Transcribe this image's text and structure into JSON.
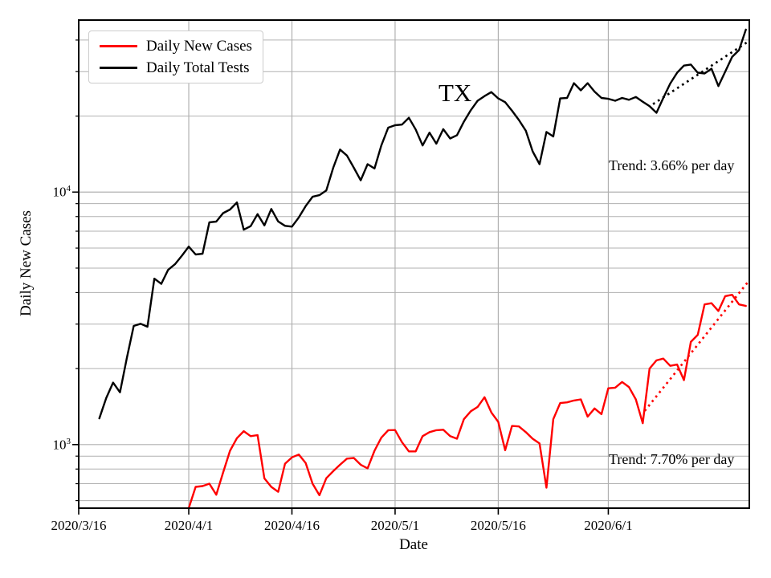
{
  "figure": {
    "region_label": "TX",
    "xlabel": "Date",
    "ylabel": "Daily New Cases",
    "legend": [
      {
        "label": "Daily New Cases",
        "color": "#ff0000"
      },
      {
        "label": "Daily Total Tests",
        "color": "#000000"
      }
    ],
    "annotations": {
      "tests_trend": "Trend: 3.66% per day",
      "cases_trend": "Trend: 7.70% per day"
    }
  },
  "chart_data": {
    "type": "line",
    "title": "TX",
    "xlabel": "Date",
    "ylabel": "Daily New Cases",
    "y_scale": "log",
    "grid": true,
    "legend_position": "upper-left",
    "ylim": [
      560,
      48000
    ],
    "xlim_days": [
      0,
      97.5
    ],
    "x_tick_labels": [
      "2020/3/16",
      "2020/4/1",
      "2020/4/16",
      "2020/5/1",
      "2020/5/16",
      "2020/6/1"
    ],
    "x_tick_day_offsets": [
      0,
      16,
      31,
      46,
      61,
      77
    ],
    "y_major_ticks": [
      1000,
      10000
    ],
    "y_major_labels": [
      {
        "base": "10",
        "exp": "3"
      },
      {
        "base": "10",
        "exp": "4"
      }
    ],
    "y_minor_ticks": [
      600,
      700,
      800,
      900,
      2000,
      3000,
      4000,
      5000,
      6000,
      7000,
      8000,
      9000,
      20000,
      30000,
      40000
    ],
    "first_point_day_offset": 3,
    "dates": [
      "2020/3/19",
      "2020/3/20",
      "2020/3/21",
      "2020/3/22",
      "2020/3/23",
      "2020/3/24",
      "2020/3/25",
      "2020/3/26",
      "2020/3/27",
      "2020/3/28",
      "2020/3/29",
      "2020/3/30",
      "2020/3/31",
      "2020/4/1",
      "2020/4/2",
      "2020/4/3",
      "2020/4/4",
      "2020/4/5",
      "2020/4/6",
      "2020/4/7",
      "2020/4/8",
      "2020/4/9",
      "2020/4/10",
      "2020/4/11",
      "2020/4/12",
      "2020/4/13",
      "2020/4/14",
      "2020/4/15",
      "2020/4/16",
      "2020/4/17",
      "2020/4/18",
      "2020/4/19",
      "2020/4/20",
      "2020/4/21",
      "2020/4/22",
      "2020/4/23",
      "2020/4/24",
      "2020/4/25",
      "2020/4/26",
      "2020/4/27",
      "2020/4/28",
      "2020/4/29",
      "2020/4/30",
      "2020/5/1",
      "2020/5/2",
      "2020/5/3",
      "2020/5/4",
      "2020/5/5",
      "2020/5/6",
      "2020/5/7",
      "2020/5/8",
      "2020/5/9",
      "2020/5/10",
      "2020/5/11",
      "2020/5/12",
      "2020/5/13",
      "2020/5/14",
      "2020/5/15",
      "2020/5/16",
      "2020/5/17",
      "2020/5/18",
      "2020/5/19",
      "2020/5/20",
      "2020/5/21",
      "2020/5/22",
      "2020/5/23",
      "2020/5/24",
      "2020/5/25",
      "2020/5/26",
      "2020/5/27",
      "2020/5/28",
      "2020/5/29",
      "2020/5/30",
      "2020/5/31",
      "2020/6/1",
      "2020/6/2",
      "2020/6/3",
      "2020/6/4",
      "2020/6/5",
      "2020/6/6",
      "2020/6/7",
      "2020/6/8",
      "2020/6/9",
      "2020/6/10",
      "2020/6/11",
      "2020/6/12",
      "2020/6/13",
      "2020/6/14",
      "2020/6/15",
      "2020/6/16",
      "2020/6/17",
      "2020/6/18",
      "2020/6/19",
      "2020/6/20",
      "2020/6/21"
    ],
    "series": [
      {
        "name": "Daily New Cases",
        "color": "#ff0000",
        "values": [
          null,
          null,
          null,
          null,
          null,
          null,
          null,
          null,
          null,
          null,
          null,
          null,
          null,
          560,
          680,
          685,
          700,
          633,
          775,
          945,
          1060,
          1130,
          1080,
          1090,
          735,
          680,
          650,
          840,
          890,
          913,
          845,
          700,
          630,
          736,
          785,
          832,
          880,
          885,
          832,
          805,
          945,
          1065,
          1140,
          1142,
          1022,
          940,
          940,
          1080,
          1120,
          1140,
          1145,
          1080,
          1055,
          1260,
          1355,
          1410,
          1540,
          1340,
          1230,
          950,
          1185,
          1180,
          1120,
          1055,
          1010,
          675,
          1260,
          1460,
          1470,
          1495,
          1510,
          1290,
          1390,
          1320,
          1670,
          1680,
          1770,
          1690,
          1510,
          1215,
          2000,
          2155,
          2190,
          2050,
          2075,
          1800,
          2550,
          2720,
          3590,
          3630,
          3380,
          3870,
          3920,
          3590,
          3540
        ]
      },
      {
        "name": "Daily Total Tests",
        "color": "#000000",
        "values": [
          1270,
          1530,
          1760,
          1610,
          2200,
          2950,
          3010,
          2930,
          4540,
          4330,
          4920,
          5180,
          5600,
          6080,
          5660,
          5700,
          7590,
          7640,
          8250,
          8530,
          9100,
          7100,
          7330,
          8180,
          7380,
          8570,
          7650,
          7350,
          7300,
          7940,
          8800,
          9580,
          9720,
          10150,
          12480,
          14740,
          13950,
          12480,
          11130,
          12900,
          12400,
          15300,
          18000,
          18400,
          18500,
          19700,
          17700,
          15300,
          17200,
          15550,
          17750,
          16300,
          16800,
          19000,
          21100,
          23000,
          24000,
          24900,
          23500,
          22700,
          21000,
          19300,
          17500,
          14500,
          12900,
          17300,
          16600,
          23500,
          23600,
          27000,
          25300,
          27000,
          25000,
          23600,
          23400,
          23000,
          23600,
          23200,
          23800,
          22800,
          21900,
          20600,
          23600,
          26900,
          29700,
          31700,
          32000,
          29700,
          29500,
          30800,
          26300,
          30000,
          34300,
          36500,
          44000
        ]
      }
    ],
    "trend_lines": [
      {
        "series": "Daily Total Tests",
        "color": "#000000",
        "label": "Trend: 3.66% per day",
        "rate_percent_per_day": 3.66,
        "start_day": 83.5,
        "start_value": 22300,
        "end_day": 97.3,
        "end_value": 39400
      },
      {
        "series": "Daily New Cases",
        "color": "#ff0000",
        "label": "Trend: 7.70% per day",
        "rate_percent_per_day": 7.7,
        "start_day": 82.3,
        "start_value": 1360,
        "end_day": 97.2,
        "end_value": 4370
      }
    ]
  }
}
